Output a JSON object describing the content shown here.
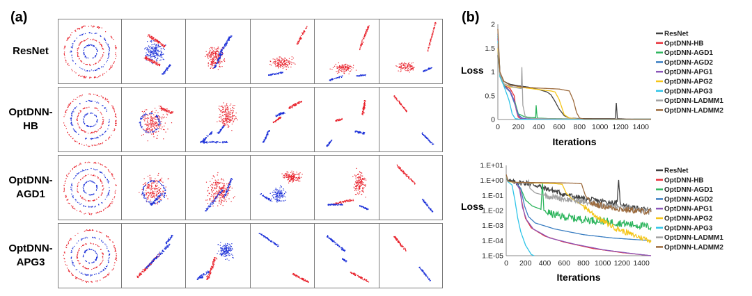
{
  "panel_a": {
    "label": "(a)",
    "rows": [
      {
        "label": "ResNet",
        "lines": [
          "ResNet"
        ]
      },
      {
        "label": "OptDNN-HB",
        "lines": [
          "OptDNN-",
          "HB"
        ]
      },
      {
        "label": "OptDNN-AGD1",
        "lines": [
          "OptDNN-",
          "AGD1"
        ]
      },
      {
        "label": "OptDNN-APG3",
        "lines": [
          "OptDNN-",
          "APG3"
        ]
      }
    ],
    "colors": {
      "class1": "#e8202a",
      "class2": "#1a2fd8"
    }
  },
  "panel_b": {
    "label": "(b)"
  },
  "chart_data": [
    {
      "type": "line",
      "title": "",
      "xlabel": "Iterations",
      "ylabel": "Loss",
      "xlim": [
        0,
        1500
      ],
      "ylim": [
        0,
        2
      ],
      "xticks": [
        "0",
        "200",
        "400",
        "600",
        "800",
        "1000",
        "1200",
        "1400"
      ],
      "yticks": [
        "0",
        "0.5",
        "1",
        "1.5",
        "2"
      ],
      "grid": false,
      "legend": "right",
      "series": [
        {
          "name": "ResNet",
          "color": "#404040",
          "points": [
            [
              0,
              1.35
            ],
            [
              20,
              0.95
            ],
            [
              60,
              0.8
            ],
            [
              120,
              0.74
            ],
            [
              200,
              0.71
            ],
            [
              300,
              0.68
            ],
            [
              400,
              0.63
            ],
            [
              480,
              0.58
            ],
            [
              520,
              0.52
            ],
            [
              560,
              0.38
            ],
            [
              600,
              0.22
            ],
            [
              650,
              0.08
            ],
            [
              700,
              0.03
            ],
            [
              800,
              0.02
            ],
            [
              1000,
              0.02
            ],
            [
              1150,
              0.02
            ],
            [
              1160,
              0.35
            ],
            [
              1170,
              0.02
            ],
            [
              1300,
              0.01
            ],
            [
              1500,
              0.01
            ]
          ]
        },
        {
          "name": "OptDNN-HB",
          "color": "#e8313a",
          "points": [
            [
              0,
              1.7
            ],
            [
              20,
              1.0
            ],
            [
              60,
              0.72
            ],
            [
              120,
              0.65
            ],
            [
              160,
              0.5
            ],
            [
              180,
              0.2
            ],
            [
              200,
              0.05
            ],
            [
              230,
              0.01
            ],
            [
              300,
              0.005
            ],
            [
              1500,
              0.003
            ]
          ]
        },
        {
          "name": "OptDNN-AGD1",
          "color": "#2db55d",
          "points": [
            [
              0,
              1.75
            ],
            [
              20,
              1.0
            ],
            [
              60,
              0.72
            ],
            [
              120,
              0.6
            ],
            [
              170,
              0.35
            ],
            [
              200,
              0.12
            ],
            [
              260,
              0.06
            ],
            [
              330,
              0.04
            ],
            [
              370,
              0.04
            ],
            [
              375,
              0.3
            ],
            [
              385,
              0.03
            ],
            [
              500,
              0.02
            ],
            [
              700,
              0.015
            ],
            [
              1500,
              0.008
            ]
          ]
        },
        {
          "name": "OptDNN-AGD2",
          "color": "#3a7ec2",
          "points": [
            [
              0,
              1.8
            ],
            [
              20,
              1.0
            ],
            [
              60,
              0.7
            ],
            [
              120,
              0.58
            ],
            [
              170,
              0.3
            ],
            [
              200,
              0.1
            ],
            [
              240,
              0.03
            ],
            [
              300,
              0.01
            ],
            [
              1500,
              0.004
            ]
          ]
        },
        {
          "name": "OptDNN-APG1",
          "color": "#8a55b8",
          "points": [
            [
              0,
              1.7
            ],
            [
              20,
              0.95
            ],
            [
              60,
              0.7
            ],
            [
              120,
              0.6
            ],
            [
              160,
              0.4
            ],
            [
              190,
              0.12
            ],
            [
              220,
              0.03
            ],
            [
              280,
              0.01
            ],
            [
              1500,
              0.003
            ]
          ]
        },
        {
          "name": "OptDNN-APG2",
          "color": "#f5c518",
          "points": [
            [
              0,
              1.5
            ],
            [
              20,
              0.9
            ],
            [
              60,
              0.75
            ],
            [
              120,
              0.68
            ],
            [
              250,
              0.67
            ],
            [
              400,
              0.63
            ],
            [
              520,
              0.6
            ],
            [
              560,
              0.58
            ],
            [
              600,
              0.42
            ],
            [
              650,
              0.1
            ],
            [
              700,
              0.03
            ],
            [
              800,
              0.01
            ],
            [
              1500,
              0.005
            ]
          ]
        },
        {
          "name": "OptDNN-APG3",
          "color": "#2ec4e8",
          "points": [
            [
              0,
              1.65
            ],
            [
              20,
              0.9
            ],
            [
              60,
              0.7
            ],
            [
              110,
              0.4
            ],
            [
              140,
              0.12
            ],
            [
              170,
              0.02
            ],
            [
              220,
              0.005
            ],
            [
              1500,
              0.001
            ]
          ]
        },
        {
          "name": "OptDNN-LADMM1",
          "color": "#a0a0a0",
          "points": [
            [
              0,
              1.6
            ],
            [
              20,
              0.95
            ],
            [
              60,
              0.75
            ],
            [
              120,
              0.7
            ],
            [
              200,
              0.66
            ],
            [
              230,
              0.65
            ],
            [
              235,
              1.1
            ],
            [
              245,
              0.3
            ],
            [
              270,
              0.04
            ],
            [
              350,
              0.02
            ],
            [
              600,
              0.015
            ],
            [
              1500,
              0.01
            ]
          ]
        },
        {
          "name": "OptDNN-LADMM2",
          "color": "#9c6a3c",
          "points": [
            [
              0,
              1.9
            ],
            [
              20,
              1.0
            ],
            [
              60,
              0.8
            ],
            [
              120,
              0.72
            ],
            [
              250,
              0.68
            ],
            [
              400,
              0.66
            ],
            [
              600,
              0.64
            ],
            [
              700,
              0.6
            ],
            [
              740,
              0.4
            ],
            [
              770,
              0.15
            ],
            [
              800,
              0.03
            ],
            [
              850,
              0.01
            ],
            [
              1500,
              0.005
            ]
          ]
        }
      ]
    },
    {
      "type": "line",
      "title": "",
      "xlabel": "Iterations",
      "ylabel": "Loss",
      "yscale": "log",
      "xlim": [
        0,
        1500
      ],
      "ylim": [
        1e-05,
        10
      ],
      "xticks": [
        "0",
        "200",
        "400",
        "600",
        "800",
        "1000",
        "1200",
        "1400"
      ],
      "yticks": [
        "1.E+01",
        "1.E+00",
        "1.E-01",
        "1.E-02",
        "1.E-03",
        "1.E-04",
        "1.E-05"
      ],
      "grid": false,
      "legend": "right",
      "series": [
        {
          "name": "ResNet",
          "color": "#404040",
          "noise": 0.18,
          "points": [
            [
              0,
              2.5
            ],
            [
              20,
              0.9
            ],
            [
              100,
              0.72
            ],
            [
              200,
              0.68
            ],
            [
              300,
              0.5
            ],
            [
              400,
              0.3
            ],
            [
              500,
              0.2
            ],
            [
              600,
              0.12
            ],
            [
              800,
              0.06
            ],
            [
              1000,
              0.04
            ],
            [
              1150,
              0.03
            ],
            [
              1165,
              1.5
            ],
            [
              1180,
              0.03
            ],
            [
              1300,
              0.015
            ],
            [
              1500,
              0.01
            ]
          ]
        },
        {
          "name": "OptDNN-HB",
          "color": "#e8313a",
          "points": [
            [
              0,
              2.0
            ],
            [
              20,
              0.9
            ],
            [
              100,
              0.72
            ],
            [
              140,
              0.3
            ],
            [
              170,
              0.02
            ],
            [
              200,
              0.003
            ],
            [
              260,
              0.0007
            ],
            [
              400,
              0.0002
            ],
            [
              600,
              8e-05
            ],
            [
              900,
              3e-05
            ],
            [
              1200,
              1.6e-05
            ],
            [
              1500,
              1e-05
            ]
          ]
        },
        {
          "name": "OptDNN-AGD1",
          "color": "#2db55d",
          "noise": 0.25,
          "noiseFrom": 400,
          "points": [
            [
              0,
              2.2
            ],
            [
              20,
              0.9
            ],
            [
              100,
              0.72
            ],
            [
              150,
              0.3
            ],
            [
              200,
              0.05
            ],
            [
              270,
              0.02
            ],
            [
              360,
              0.012
            ],
            [
              375,
              0.7
            ],
            [
              390,
              0.01
            ],
            [
              500,
              0.005
            ],
            [
              700,
              0.003
            ],
            [
              1000,
              0.002
            ],
            [
              1300,
              0.0012
            ],
            [
              1500,
              0.0008
            ]
          ]
        },
        {
          "name": "OptDNN-AGD2",
          "color": "#3a7ec2",
          "points": [
            [
              0,
              2.3
            ],
            [
              20,
              0.9
            ],
            [
              100,
              0.72
            ],
            [
              150,
              0.3
            ],
            [
              190,
              0.02
            ],
            [
              230,
              0.004
            ],
            [
              300,
              0.0015
            ],
            [
              500,
              0.0006
            ],
            [
              800,
              0.00025
            ],
            [
              1100,
              0.00015
            ],
            [
              1500,
              0.0001
            ]
          ]
        },
        {
          "name": "OptDNN-APG1",
          "color": "#8a55b8",
          "points": [
            [
              0,
              2.0
            ],
            [
              20,
              0.9
            ],
            [
              100,
              0.72
            ],
            [
              140,
              0.25
            ],
            [
              170,
              0.015
            ],
            [
              210,
              0.0025
            ],
            [
              280,
              0.0006
            ],
            [
              450,
              0.00015
            ],
            [
              700,
              6e-05
            ],
            [
              1000,
              2.5e-05
            ],
            [
              1300,
              1.4e-05
            ],
            [
              1500,
              1e-05
            ]
          ]
        },
        {
          "name": "OptDNN-APG2",
          "color": "#f5c518",
          "noise": 0.18,
          "noiseFrom": 800,
          "points": [
            [
              0,
              1.8
            ],
            [
              20,
              0.85
            ],
            [
              100,
              0.72
            ],
            [
              300,
              0.68
            ],
            [
              500,
              0.62
            ],
            [
              580,
              0.55
            ],
            [
              620,
              0.15
            ],
            [
              680,
              0.06
            ],
            [
              800,
              0.02
            ],
            [
              900,
              0.006
            ],
            [
              1000,
              0.002
            ],
            [
              1150,
              0.0006
            ],
            [
              1300,
              0.00025
            ],
            [
              1500,
              0.0001
            ]
          ]
        },
        {
          "name": "OptDNN-APG3",
          "color": "#2ec4e8",
          "points": [
            [
              0,
              2.0
            ],
            [
              20,
              0.8
            ],
            [
              60,
              0.5
            ],
            [
              90,
              0.05
            ],
            [
              120,
              0.003
            ],
            [
              150,
              0.0004
            ],
            [
              200,
              5e-05
            ],
            [
              260,
              1.2e-05
            ],
            [
              290,
              1e-05
            ]
          ]
        },
        {
          "name": "OptDNN-LADMM1",
          "color": "#a0a0a0",
          "noise": 0.2,
          "noiseFrom": 400,
          "points": [
            [
              0,
              2.0
            ],
            [
              20,
              0.9
            ],
            [
              100,
              0.72
            ],
            [
              200,
              0.68
            ],
            [
              220,
              0.65
            ],
            [
              232,
              1.0
            ],
            [
              245,
              0.3
            ],
            [
              300,
              0.15
            ],
            [
              400,
              0.1
            ],
            [
              600,
              0.06
            ],
            [
              900,
              0.03
            ],
            [
              1200,
              0.015
            ],
            [
              1500,
              0.008
            ]
          ]
        },
        {
          "name": "OptDNN-LADMM2",
          "color": "#9c6a3c",
          "noise": 0.2,
          "noiseFrom": 850,
          "points": [
            [
              0,
              2.5
            ],
            [
              20,
              0.9
            ],
            [
              100,
              0.75
            ],
            [
              300,
              0.72
            ],
            [
              500,
              0.7
            ],
            [
              700,
              0.66
            ],
            [
              780,
              0.6
            ],
            [
              820,
              0.1
            ],
            [
              880,
              0.03
            ],
            [
              1000,
              0.02
            ],
            [
              1200,
              0.012
            ],
            [
              1500,
              0.008
            ]
          ]
        }
      ]
    }
  ]
}
